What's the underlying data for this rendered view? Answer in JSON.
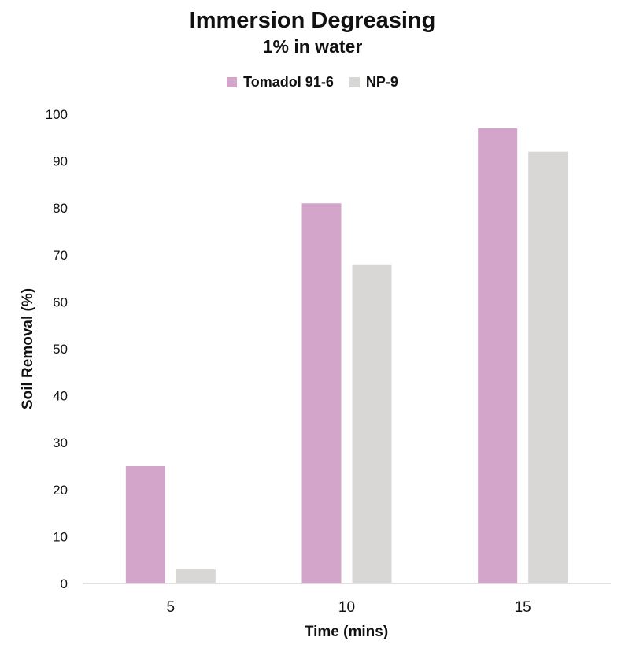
{
  "chart_data": {
    "type": "bar",
    "title": "Immersion Degreasing",
    "subtitle": "1% in water",
    "xlabel": "Time (mins)",
    "ylabel": "Soil Removal (%)",
    "categories": [
      "5",
      "10",
      "15"
    ],
    "ylim": [
      0,
      100
    ],
    "yticks": [
      0,
      10,
      20,
      30,
      40,
      50,
      60,
      70,
      80,
      90,
      100
    ],
    "grid": false,
    "legend_position": "top",
    "series": [
      {
        "name": "Tomadol 91-6",
        "color": "#d4a5cb",
        "values": [
          25,
          81,
          97
        ]
      },
      {
        "name": "NP-9",
        "color": "#d9d6d6",
        "values": [
          3,
          68,
          92
        ]
      }
    ]
  }
}
